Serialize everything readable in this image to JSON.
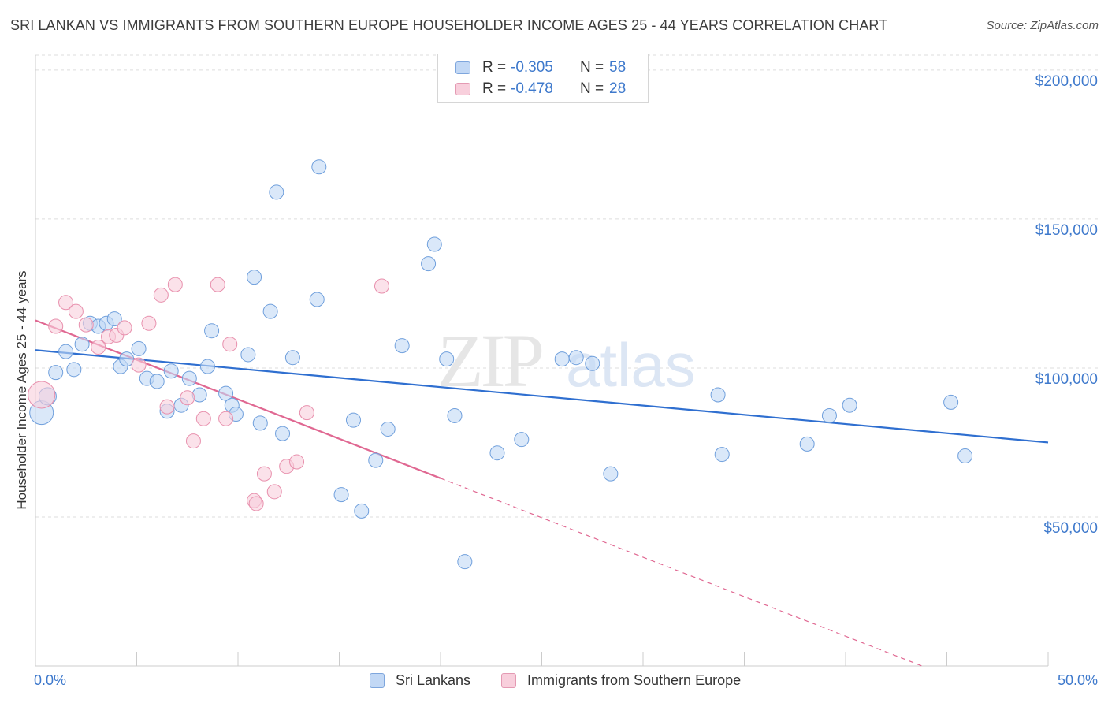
{
  "header": {
    "title": "SRI LANKAN VS IMMIGRANTS FROM SOUTHERN EUROPE HOUSEHOLDER INCOME AGES 25 - 44 YEARS CORRELATION CHART",
    "source": "Source: ZipAtlas.com"
  },
  "legend": {
    "r_label": "R =",
    "n_label": "N =",
    "rows": [
      {
        "r": "-0.305",
        "n": "58",
        "color": "#c2d8f5"
      },
      {
        "r": "-0.478",
        "n": "28",
        "color": "#f8cfdc"
      }
    ]
  },
  "watermark": {
    "part1": "ZIP",
    "part2": "atlas"
  },
  "chart_data": {
    "type": "scatter",
    "ylabel": "Householder Income Ages 25 - 44 years",
    "x_tick_labels": [
      "0.0%",
      "50.0%"
    ],
    "y_tick_labels": [
      "$50,000",
      "$100,000",
      "$150,000",
      "$200,000"
    ],
    "y_ticks": [
      50000,
      100000,
      150000,
      200000
    ],
    "xlim": [
      0,
      50
    ],
    "ylim": [
      0,
      205000
    ],
    "grid": true,
    "legend_placement": "top-center",
    "colors": {
      "blue": "#6f9fdc",
      "blue_fill": "#c2d8f5",
      "pink": "#e890ad",
      "pink_fill": "#f8cfdc",
      "blue_line": "#2f6fd0",
      "pink_line": "#e06892"
    },
    "series": [
      {
        "name": "Sri Lankans",
        "points": [
          [
            0.3,
            85000
          ],
          [
            0.6,
            90500
          ],
          [
            1.0,
            98500
          ],
          [
            1.5,
            105500
          ],
          [
            1.9,
            99500
          ],
          [
            2.3,
            108000
          ],
          [
            2.7,
            115000
          ],
          [
            3.1,
            114000
          ],
          [
            3.5,
            115000
          ],
          [
            3.9,
            116500
          ],
          [
            4.2,
            100500
          ],
          [
            4.5,
            103000
          ],
          [
            5.1,
            106500
          ],
          [
            5.5,
            96500
          ],
          [
            6.0,
            95500
          ],
          [
            6.5,
            85500
          ],
          [
            6.7,
            99000
          ],
          [
            7.2,
            87500
          ],
          [
            7.6,
            96500
          ],
          [
            8.1,
            91000
          ],
          [
            8.5,
            100500
          ],
          [
            8.7,
            112500
          ],
          [
            9.4,
            91500
          ],
          [
            9.7,
            87500
          ],
          [
            9.9,
            84500
          ],
          [
            10.5,
            104500
          ],
          [
            10.8,
            130500
          ],
          [
            11.1,
            81500
          ],
          [
            11.6,
            119000
          ],
          [
            11.9,
            159000
          ],
          [
            12.2,
            78000
          ],
          [
            12.7,
            103500
          ],
          [
            13.9,
            123000
          ],
          [
            14.0,
            167500
          ],
          [
            15.1,
            57500
          ],
          [
            15.7,
            82500
          ],
          [
            16.1,
            52000
          ],
          [
            16.8,
            69000
          ],
          [
            17.4,
            79500
          ],
          [
            18.1,
            107500
          ],
          [
            19.4,
            135000
          ],
          [
            19.7,
            141500
          ],
          [
            20.3,
            103000
          ],
          [
            20.7,
            84000
          ],
          [
            21.2,
            35000
          ],
          [
            22.8,
            71500
          ],
          [
            24.0,
            76000
          ],
          [
            26.0,
            103000
          ],
          [
            26.7,
            103500
          ],
          [
            27.5,
            101500
          ],
          [
            28.4,
            64500
          ],
          [
            33.7,
            91000
          ],
          [
            33.9,
            71000
          ],
          [
            38.1,
            74500
          ],
          [
            39.2,
            84000
          ],
          [
            40.2,
            87500
          ],
          [
            45.2,
            88500
          ],
          [
            45.9,
            70500
          ]
        ],
        "trend": {
          "x": [
            0,
            50
          ],
          "y": [
            106000,
            75000
          ]
        }
      },
      {
        "name": "Immigrants from Southern Europe",
        "points": [
          [
            0.3,
            91000
          ],
          [
            1.0,
            114000
          ],
          [
            1.5,
            122000
          ],
          [
            2.0,
            119000
          ],
          [
            2.5,
            114500
          ],
          [
            3.1,
            107000
          ],
          [
            3.6,
            110500
          ],
          [
            4.0,
            111000
          ],
          [
            4.4,
            113500
          ],
          [
            5.1,
            101000
          ],
          [
            5.6,
            115000
          ],
          [
            6.2,
            124500
          ],
          [
            6.5,
            87000
          ],
          [
            6.9,
            128000
          ],
          [
            7.5,
            90000
          ],
          [
            7.8,
            75500
          ],
          [
            8.3,
            83000
          ],
          [
            9.0,
            128000
          ],
          [
            9.4,
            83000
          ],
          [
            9.6,
            108000
          ],
          [
            10.8,
            55500
          ],
          [
            11.3,
            64500
          ],
          [
            11.8,
            58500
          ],
          [
            12.4,
            67000
          ],
          [
            12.9,
            68500
          ],
          [
            13.4,
            85000
          ],
          [
            17.1,
            127500
          ],
          [
            10.9,
            54500
          ]
        ],
        "trend": {
          "x": [
            0,
            20
          ],
          "y": [
            116000,
            63000
          ]
        },
        "trend_dashed": {
          "x": [
            20,
            50
          ],
          "y": [
            63000,
            -16500
          ]
        }
      }
    ]
  }
}
